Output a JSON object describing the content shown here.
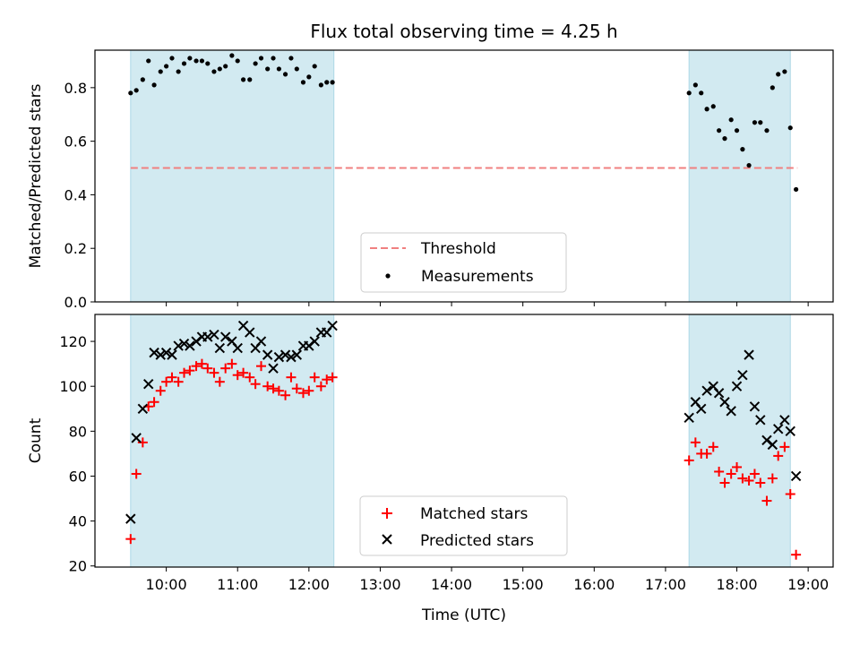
{
  "chart_data": [
    {
      "type": "scatter",
      "title": "Flux total observing time = 4.25 h",
      "xlabel": "",
      "ylabel": "Matched/Predicted stars",
      "xlim": [
        9.0,
        19.35
      ],
      "ylim": [
        0.0,
        0.94
      ],
      "yticks": [
        0.0,
        0.2,
        0.4,
        0.6,
        0.8
      ],
      "ytick_labels": [
        "0.0",
        "0.2",
        "0.4",
        "0.6",
        "0.8"
      ],
      "bands": [
        [
          9.5,
          12.35
        ],
        [
          17.33,
          18.75
        ]
      ],
      "band_color": "#add8e6",
      "threshold": {
        "name": "Threshold",
        "value": 0.5,
        "x": [
          9.5,
          18.85
        ],
        "color": "#f08080"
      },
      "legend": {
        "position": "bottom-center",
        "entries": [
          "Threshold",
          "Measurements"
        ]
      },
      "series": [
        {
          "name": "Measurements",
          "color": "#000000",
          "marker": "dot",
          "points": [
            [
              9.5,
              0.78
            ],
            [
              9.58,
              0.79
            ],
            [
              9.67,
              0.83
            ],
            [
              9.75,
              0.9
            ],
            [
              9.83,
              0.81
            ],
            [
              9.92,
              0.86
            ],
            [
              10.0,
              0.88
            ],
            [
              10.08,
              0.91
            ],
            [
              10.17,
              0.86
            ],
            [
              10.25,
              0.89
            ],
            [
              10.33,
              0.91
            ],
            [
              10.42,
              0.9
            ],
            [
              10.5,
              0.9
            ],
            [
              10.58,
              0.89
            ],
            [
              10.67,
              0.86
            ],
            [
              10.75,
              0.87
            ],
            [
              10.83,
              0.88
            ],
            [
              10.92,
              0.92
            ],
            [
              11.0,
              0.9
            ],
            [
              11.08,
              0.83
            ],
            [
              11.17,
              0.83
            ],
            [
              11.25,
              0.89
            ],
            [
              11.33,
              0.91
            ],
            [
              11.42,
              0.87
            ],
            [
              11.5,
              0.91
            ],
            [
              11.58,
              0.87
            ],
            [
              11.67,
              0.85
            ],
            [
              11.75,
              0.91
            ],
            [
              11.83,
              0.87
            ],
            [
              11.92,
              0.82
            ],
            [
              12.0,
              0.84
            ],
            [
              12.08,
              0.88
            ],
            [
              12.17,
              0.81
            ],
            [
              12.25,
              0.82
            ],
            [
              12.33,
              0.82
            ],
            [
              17.33,
              0.78
            ],
            [
              17.42,
              0.81
            ],
            [
              17.5,
              0.78
            ],
            [
              17.58,
              0.72
            ],
            [
              17.67,
              0.73
            ],
            [
              17.75,
              0.64
            ],
            [
              17.83,
              0.61
            ],
            [
              17.92,
              0.68
            ],
            [
              18.0,
              0.64
            ],
            [
              18.08,
              0.57
            ],
            [
              18.17,
              0.51
            ],
            [
              18.25,
              0.67
            ],
            [
              18.33,
              0.67
            ],
            [
              18.42,
              0.64
            ],
            [
              18.5,
              0.8
            ],
            [
              18.58,
              0.85
            ],
            [
              18.67,
              0.86
            ],
            [
              18.75,
              0.65
            ],
            [
              18.83,
              0.42
            ]
          ]
        }
      ]
    },
    {
      "type": "scatter",
      "xlabel": "Time (UTC)",
      "ylabel": "Count",
      "xlim": [
        9.0,
        19.35
      ],
      "ylim": [
        19.5,
        132
      ],
      "yticks": [
        20,
        40,
        60,
        80,
        100,
        120
      ],
      "ytick_labels": [
        "20",
        "40",
        "60",
        "80",
        "100",
        "120"
      ],
      "xticks": [
        10,
        11,
        12,
        13,
        14,
        15,
        16,
        17,
        18,
        19
      ],
      "xtick_labels": [
        "10:00",
        "11:00",
        "12:00",
        "13:00",
        "14:00",
        "15:00",
        "16:00",
        "17:00",
        "18:00",
        "19:00"
      ],
      "bands": [
        [
          9.5,
          12.35
        ],
        [
          17.33,
          18.75
        ]
      ],
      "band_color": "#add8e6",
      "legend": {
        "position": "bottom-center",
        "entries": [
          "Matched stars",
          "Predicted stars"
        ]
      },
      "series": [
        {
          "name": "Matched stars",
          "color": "#ff0000",
          "marker": "plus",
          "points": [
            [
              9.5,
              32
            ],
            [
              9.58,
              61
            ],
            [
              9.67,
              75
            ],
            [
              9.75,
              91
            ],
            [
              9.83,
              93
            ],
            [
              9.92,
              98
            ],
            [
              10.0,
              102
            ],
            [
              10.08,
              104
            ],
            [
              10.17,
              102
            ],
            [
              10.25,
              106
            ],
            [
              10.33,
              107
            ],
            [
              10.42,
              109
            ],
            [
              10.5,
              110
            ],
            [
              10.58,
              108
            ],
            [
              10.67,
              106
            ],
            [
              10.75,
              102
            ],
            [
              10.83,
              108
            ],
            [
              10.92,
              110
            ],
            [
              11.0,
              105
            ],
            [
              11.08,
              106
            ],
            [
              11.17,
              104
            ],
            [
              11.25,
              101
            ],
            [
              11.33,
              109
            ],
            [
              11.42,
              100
            ],
            [
              11.5,
              99
            ],
            [
              11.58,
              98
            ],
            [
              11.67,
              96
            ],
            [
              11.75,
              104
            ],
            [
              11.83,
              99
            ],
            [
              11.92,
              97
            ],
            [
              12.0,
              98
            ],
            [
              12.08,
              104
            ],
            [
              12.17,
              100
            ],
            [
              12.25,
              103
            ],
            [
              12.33,
              104
            ],
            [
              17.33,
              67
            ],
            [
              17.42,
              75
            ],
            [
              17.5,
              70
            ],
            [
              17.58,
              70
            ],
            [
              17.67,
              73
            ],
            [
              17.75,
              62
            ],
            [
              17.83,
              57
            ],
            [
              17.92,
              61
            ],
            [
              18.0,
              64
            ],
            [
              18.08,
              59
            ],
            [
              18.17,
              58
            ],
            [
              18.25,
              61
            ],
            [
              18.33,
              57
            ],
            [
              18.42,
              49
            ],
            [
              18.5,
              59
            ],
            [
              18.58,
              69
            ],
            [
              18.67,
              73
            ],
            [
              18.75,
              52
            ],
            [
              18.83,
              25
            ]
          ]
        },
        {
          "name": "Predicted stars",
          "color": "#000000",
          "marker": "x",
          "points": [
            [
              9.5,
              41
            ],
            [
              9.58,
              77
            ],
            [
              9.67,
              90
            ],
            [
              9.75,
              101
            ],
            [
              9.83,
              115
            ],
            [
              9.92,
              114
            ],
            [
              10.0,
              115
            ],
            [
              10.08,
              114
            ],
            [
              10.17,
              118
            ],
            [
              10.25,
              119
            ],
            [
              10.33,
              118
            ],
            [
              10.42,
              120
            ],
            [
              10.5,
              122
            ],
            [
              10.58,
              122
            ],
            [
              10.67,
              123
            ],
            [
              10.75,
              117
            ],
            [
              10.83,
              122
            ],
            [
              10.92,
              120
            ],
            [
              11.0,
              117
            ],
            [
              11.08,
              127
            ],
            [
              11.17,
              124
            ],
            [
              11.25,
              117
            ],
            [
              11.33,
              120
            ],
            [
              11.42,
              114
            ],
            [
              11.5,
              108
            ],
            [
              11.58,
              113
            ],
            [
              11.67,
              114
            ],
            [
              11.75,
              113
            ],
            [
              11.83,
              114
            ],
            [
              11.92,
              118
            ],
            [
              12.0,
              118
            ],
            [
              12.08,
              120
            ],
            [
              12.17,
              124
            ],
            [
              12.25,
              124
            ],
            [
              12.33,
              127
            ],
            [
              17.33,
              86
            ],
            [
              17.42,
              93
            ],
            [
              17.5,
              90
            ],
            [
              17.58,
              98
            ],
            [
              17.67,
              100
            ],
            [
              17.75,
              97
            ],
            [
              17.83,
              93
            ],
            [
              17.92,
              89
            ],
            [
              18.0,
              100
            ],
            [
              18.08,
              105
            ],
            [
              18.17,
              114
            ],
            [
              18.25,
              91
            ],
            [
              18.33,
              85
            ],
            [
              18.42,
              76
            ],
            [
              18.5,
              74
            ],
            [
              18.58,
              81
            ],
            [
              18.67,
              85
            ],
            [
              18.75,
              80
            ],
            [
              18.83,
              60
            ]
          ]
        }
      ]
    }
  ]
}
